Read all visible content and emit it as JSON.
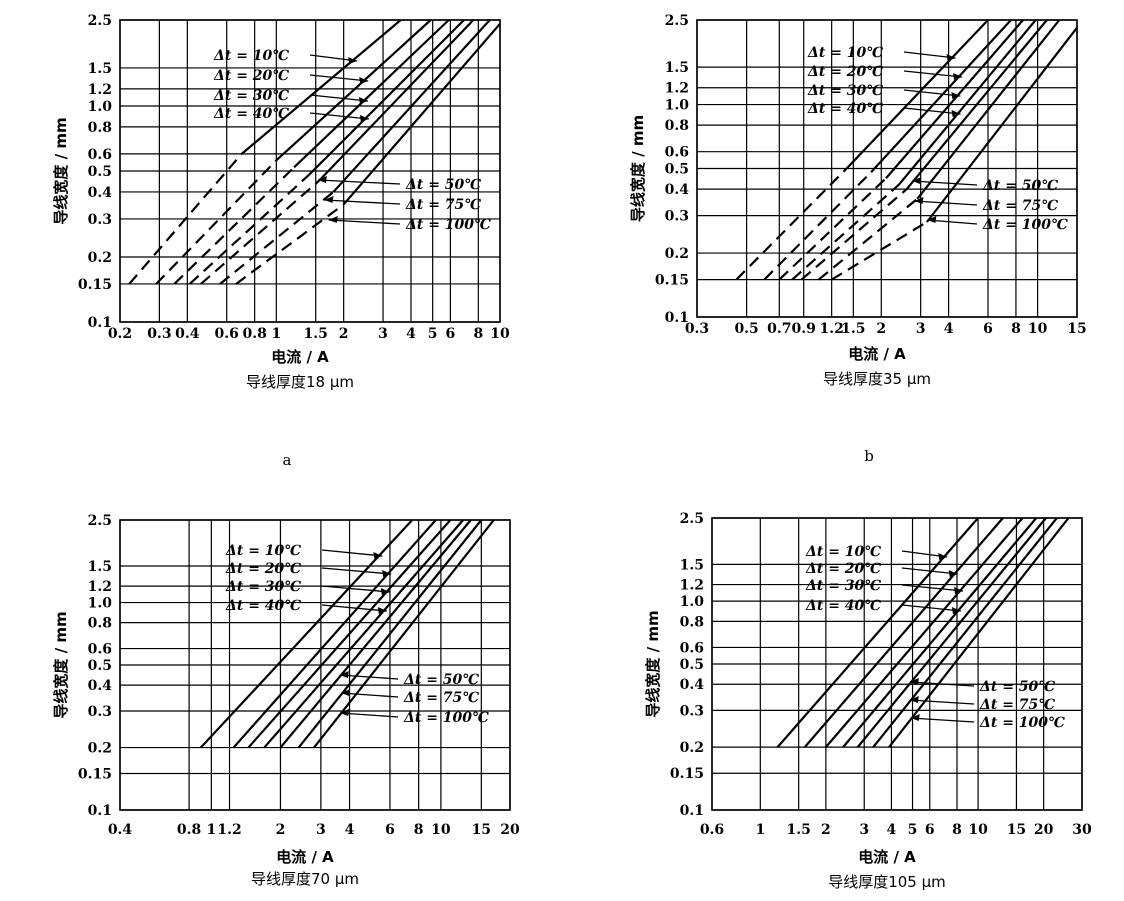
{
  "figure_labels": [
    "a",
    "b"
  ],
  "chart_data": [
    {
      "type": "line",
      "xscale": "log",
      "yscale": "log",
      "xlim": [
        0.2,
        10
      ],
      "ylim": [
        0.1,
        2.5
      ],
      "xticks": [
        0.2,
        0.3,
        0.4,
        0.6,
        0.8,
        1,
        1.5,
        2,
        3,
        4,
        5,
        6,
        8,
        10
      ],
      "xtick_labels": [
        "0.2",
        "0.3",
        "0.4",
        "0.6",
        "0.8",
        "1",
        "1.5",
        "2",
        "3",
        "4",
        "5",
        "6",
        "8",
        "10"
      ],
      "yticks": [
        0.1,
        0.15,
        0.2,
        0.3,
        0.4,
        0.5,
        0.6,
        0.8,
        1.0,
        1.2,
        1.5,
        2.5
      ],
      "ytick_labels": [
        "0.1",
        "0.15",
        "0.2",
        "0.3",
        "0.4",
        "0.5",
        "0.6",
        "0.8",
        "1.0",
        "1.2",
        "1.5",
        "2.5"
      ],
      "grid": true,
      "xlabel": "电流 / A",
      "ylabel": "导线宽度 / mm",
      "caption": "导线厚度18 μm",
      "series": [
        {
          "name": "Δt = 10℃",
          "dashed_x": [
            0.22,
            0.7
          ],
          "dashed_y": [
            0.15,
            0.6
          ],
          "x": [
            0.7,
            3.6
          ],
          "y": [
            0.6,
            2.5
          ]
        },
        {
          "name": "Δt = 20℃",
          "dashed_x": [
            0.29,
            1.0
          ],
          "dashed_y": [
            0.15,
            0.56
          ],
          "x": [
            1.0,
            4.9
          ],
          "y": [
            0.56,
            2.5
          ]
        },
        {
          "name": "Δt = 30℃",
          "dashed_x": [
            0.35,
            1.2
          ],
          "dashed_y": [
            0.15,
            0.52
          ],
          "x": [
            1.2,
            5.9
          ],
          "y": [
            0.52,
            2.5
          ]
        },
        {
          "name": "Δt = 40℃",
          "dashed_x": [
            0.41,
            1.4
          ],
          "dashed_y": [
            0.15,
            0.48
          ],
          "x": [
            1.4,
            6.9
          ],
          "y": [
            0.48,
            2.5
          ]
        },
        {
          "name": "Δt = 50℃",
          "dashed_x": [
            0.46,
            1.55
          ],
          "dashed_y": [
            0.15,
            0.45
          ],
          "x": [
            1.55,
            7.6
          ],
          "y": [
            0.45,
            2.5
          ]
        },
        {
          "name": "Δt = 75℃",
          "dashed_x": [
            0.56,
            1.8
          ],
          "dashed_y": [
            0.15,
            0.4
          ],
          "x": [
            1.8,
            9.0
          ],
          "y": [
            0.4,
            2.5
          ]
        },
        {
          "name": "Δt = 100℃",
          "dashed_x": [
            0.66,
            2.0
          ],
          "dashed_y": [
            0.15,
            0.35
          ],
          "x": [
            2.0,
            10.0
          ],
          "y": [
            0.35,
            2.4
          ]
        }
      ]
    },
    {
      "type": "line",
      "xscale": "log",
      "yscale": "log",
      "xlim": [
        0.3,
        15
      ],
      "ylim": [
        0.1,
        2.5
      ],
      "xticks": [
        0.3,
        0.5,
        0.7,
        0.9,
        1.2,
        1.5,
        2,
        3,
        4,
        6,
        8,
        10,
        15
      ],
      "xtick_labels": [
        "0.3",
        "0.5",
        "0.7",
        "0.9",
        "1.2",
        "1.5",
        "2",
        "3",
        "4",
        "6",
        "8",
        "10",
        "15"
      ],
      "yticks": [
        0.1,
        0.15,
        0.2,
        0.3,
        0.4,
        0.5,
        0.6,
        0.8,
        1.0,
        1.2,
        1.5,
        2.5
      ],
      "ytick_labels": [
        "0.1",
        "0.15",
        "0.2",
        "0.3",
        "0.4",
        "0.5",
        "0.6",
        "0.8",
        "1.0",
        "1.2",
        "1.5",
        "2.5"
      ],
      "grid": true,
      "xlabel": "电流 / A",
      "ylabel": "导线宽度 / mm",
      "caption": "导线厚度35 μm",
      "series": [
        {
          "name": "Δt = 10℃",
          "dashed_x": [
            0.45,
            1.4
          ],
          "dashed_y": [
            0.15,
            0.5
          ],
          "x": [
            1.4,
            6.0
          ],
          "y": [
            0.5,
            2.5
          ]
        },
        {
          "name": "Δt = 20℃",
          "dashed_x": [
            0.6,
            1.8
          ],
          "dashed_y": [
            0.15,
            0.48
          ],
          "x": [
            1.8,
            7.6
          ],
          "y": [
            0.48,
            2.5
          ]
        },
        {
          "name": "Δt = 30℃",
          "dashed_x": [
            0.7,
            2.1
          ],
          "dashed_y": [
            0.15,
            0.45
          ],
          "x": [
            2.1,
            8.6
          ],
          "y": [
            0.45,
            2.5
          ]
        },
        {
          "name": "Δt = 40℃",
          "dashed_x": [
            0.8,
            2.4
          ],
          "dashed_y": [
            0.15,
            0.42
          ],
          "x": [
            2.4,
            9.8
          ],
          "y": [
            0.42,
            2.5
          ]
        },
        {
          "name": "Δt = 50℃",
          "dashed_x": [
            0.88,
            2.6
          ],
          "dashed_y": [
            0.15,
            0.4
          ],
          "x": [
            2.6,
            11.0
          ],
          "y": [
            0.4,
            2.5
          ]
        },
        {
          "name": "Δt = 75℃",
          "dashed_x": [
            1.05,
            2.9
          ],
          "dashed_y": [
            0.15,
            0.36
          ],
          "x": [
            2.9,
            12.5
          ],
          "y": [
            0.36,
            2.5
          ]
        },
        {
          "name": "Δt = 100℃",
          "dashed_x": [
            1.2,
            3.2
          ],
          "dashed_y": [
            0.15,
            0.28
          ],
          "x": [
            3.2,
            15.0
          ],
          "y": [
            0.28,
            2.3
          ]
        }
      ]
    },
    {
      "type": "line",
      "xscale": "log",
      "yscale": "log",
      "xlim": [
        0.4,
        20
      ],
      "ylim": [
        0.1,
        2.5
      ],
      "xticks": [
        0.4,
        0.8,
        1,
        1.2,
        2,
        3,
        4,
        6,
        8,
        10,
        15,
        20
      ],
      "xtick_labels": [
        "0.4",
        "0.8",
        "1",
        "1.2",
        "2",
        "3",
        "4",
        "6",
        "8",
        "10",
        "15",
        "20"
      ],
      "yticks": [
        0.1,
        0.15,
        0.2,
        0.3,
        0.4,
        0.5,
        0.6,
        0.8,
        1.0,
        1.2,
        1.5,
        2.5
      ],
      "ytick_labels": [
        "0.1",
        "0.15",
        "0.2",
        "0.3",
        "0.4",
        "0.5",
        "0.6",
        "0.8",
        "1.0",
        "1.2",
        "1.5",
        "2.5"
      ],
      "grid": true,
      "xlabel": "电流 / A",
      "ylabel": "导线宽度 / mm",
      "caption": "导线厚度70 μm",
      "series": [
        {
          "name": "Δt = 10℃",
          "x": [
            0.9,
            7.5
          ],
          "y": [
            0.2,
            2.5
          ]
        },
        {
          "name": "Δt = 20℃",
          "x": [
            1.25,
            9.5
          ],
          "y": [
            0.2,
            2.5
          ]
        },
        {
          "name": "Δt = 30℃",
          "x": [
            1.45,
            11.0
          ],
          "y": [
            0.2,
            2.5
          ]
        },
        {
          "name": "Δt = 40℃",
          "x": [
            1.7,
            12.5
          ],
          "y": [
            0.2,
            2.5
          ]
        },
        {
          "name": "Δt = 50℃",
          "x": [
            2.0,
            13.5
          ],
          "y": [
            0.2,
            2.5
          ]
        },
        {
          "name": "Δt = 75℃",
          "x": [
            2.4,
            15.0
          ],
          "y": [
            0.2,
            2.5
          ]
        },
        {
          "name": "Δt = 100℃",
          "x": [
            2.8,
            17.0
          ],
          "y": [
            0.2,
            2.5
          ]
        }
      ]
    },
    {
      "type": "line",
      "xscale": "log",
      "yscale": "log",
      "xlim": [
        0.6,
        30
      ],
      "ylim": [
        0.1,
        2.5
      ],
      "xticks": [
        0.6,
        1,
        1.5,
        2,
        3,
        4,
        5,
        6,
        8,
        10,
        15,
        20,
        30
      ],
      "xtick_labels": [
        "0.6",
        "1",
        "1.5",
        "2",
        "3",
        "4",
        "5",
        "6",
        "8",
        "10",
        "15",
        "20",
        "30"
      ],
      "yticks": [
        0.1,
        0.15,
        0.2,
        0.3,
        0.4,
        0.5,
        0.6,
        0.8,
        1.0,
        1.2,
        1.5,
        2.5
      ],
      "ytick_labels": [
        "0.1",
        "0.15",
        "0.2",
        "0.3",
        "0.4",
        "0.5",
        "0.6",
        "0.8",
        "1.0",
        "1.2",
        "1.5",
        "2.5"
      ],
      "grid": true,
      "xlabel": "电流 / A",
      "ylabel": "导线宽度 / mm",
      "caption": "导线厚度105 μm",
      "series": [
        {
          "name": "Δt = 10℃",
          "x": [
            1.2,
            10.0
          ],
          "y": [
            0.2,
            2.5
          ]
        },
        {
          "name": "Δt = 20℃",
          "x": [
            1.6,
            13.0
          ],
          "y": [
            0.2,
            2.5
          ]
        },
        {
          "name": "Δt = 30℃",
          "x": [
            2.0,
            16.0
          ],
          "y": [
            0.2,
            2.5
          ]
        },
        {
          "name": "Δt = 40℃",
          "x": [
            2.4,
            18.5
          ],
          "y": [
            0.2,
            2.5
          ]
        },
        {
          "name": "Δt = 50℃",
          "x": [
            2.8,
            20.5
          ],
          "y": [
            0.2,
            2.5
          ]
        },
        {
          "name": "Δt = 75℃",
          "x": [
            3.3,
            23.0
          ],
          "y": [
            0.2,
            2.5
          ]
        },
        {
          "name": "Δt = 100℃",
          "x": [
            3.9,
            26.0
          ],
          "y": [
            0.2,
            2.5
          ]
        }
      ]
    }
  ]
}
